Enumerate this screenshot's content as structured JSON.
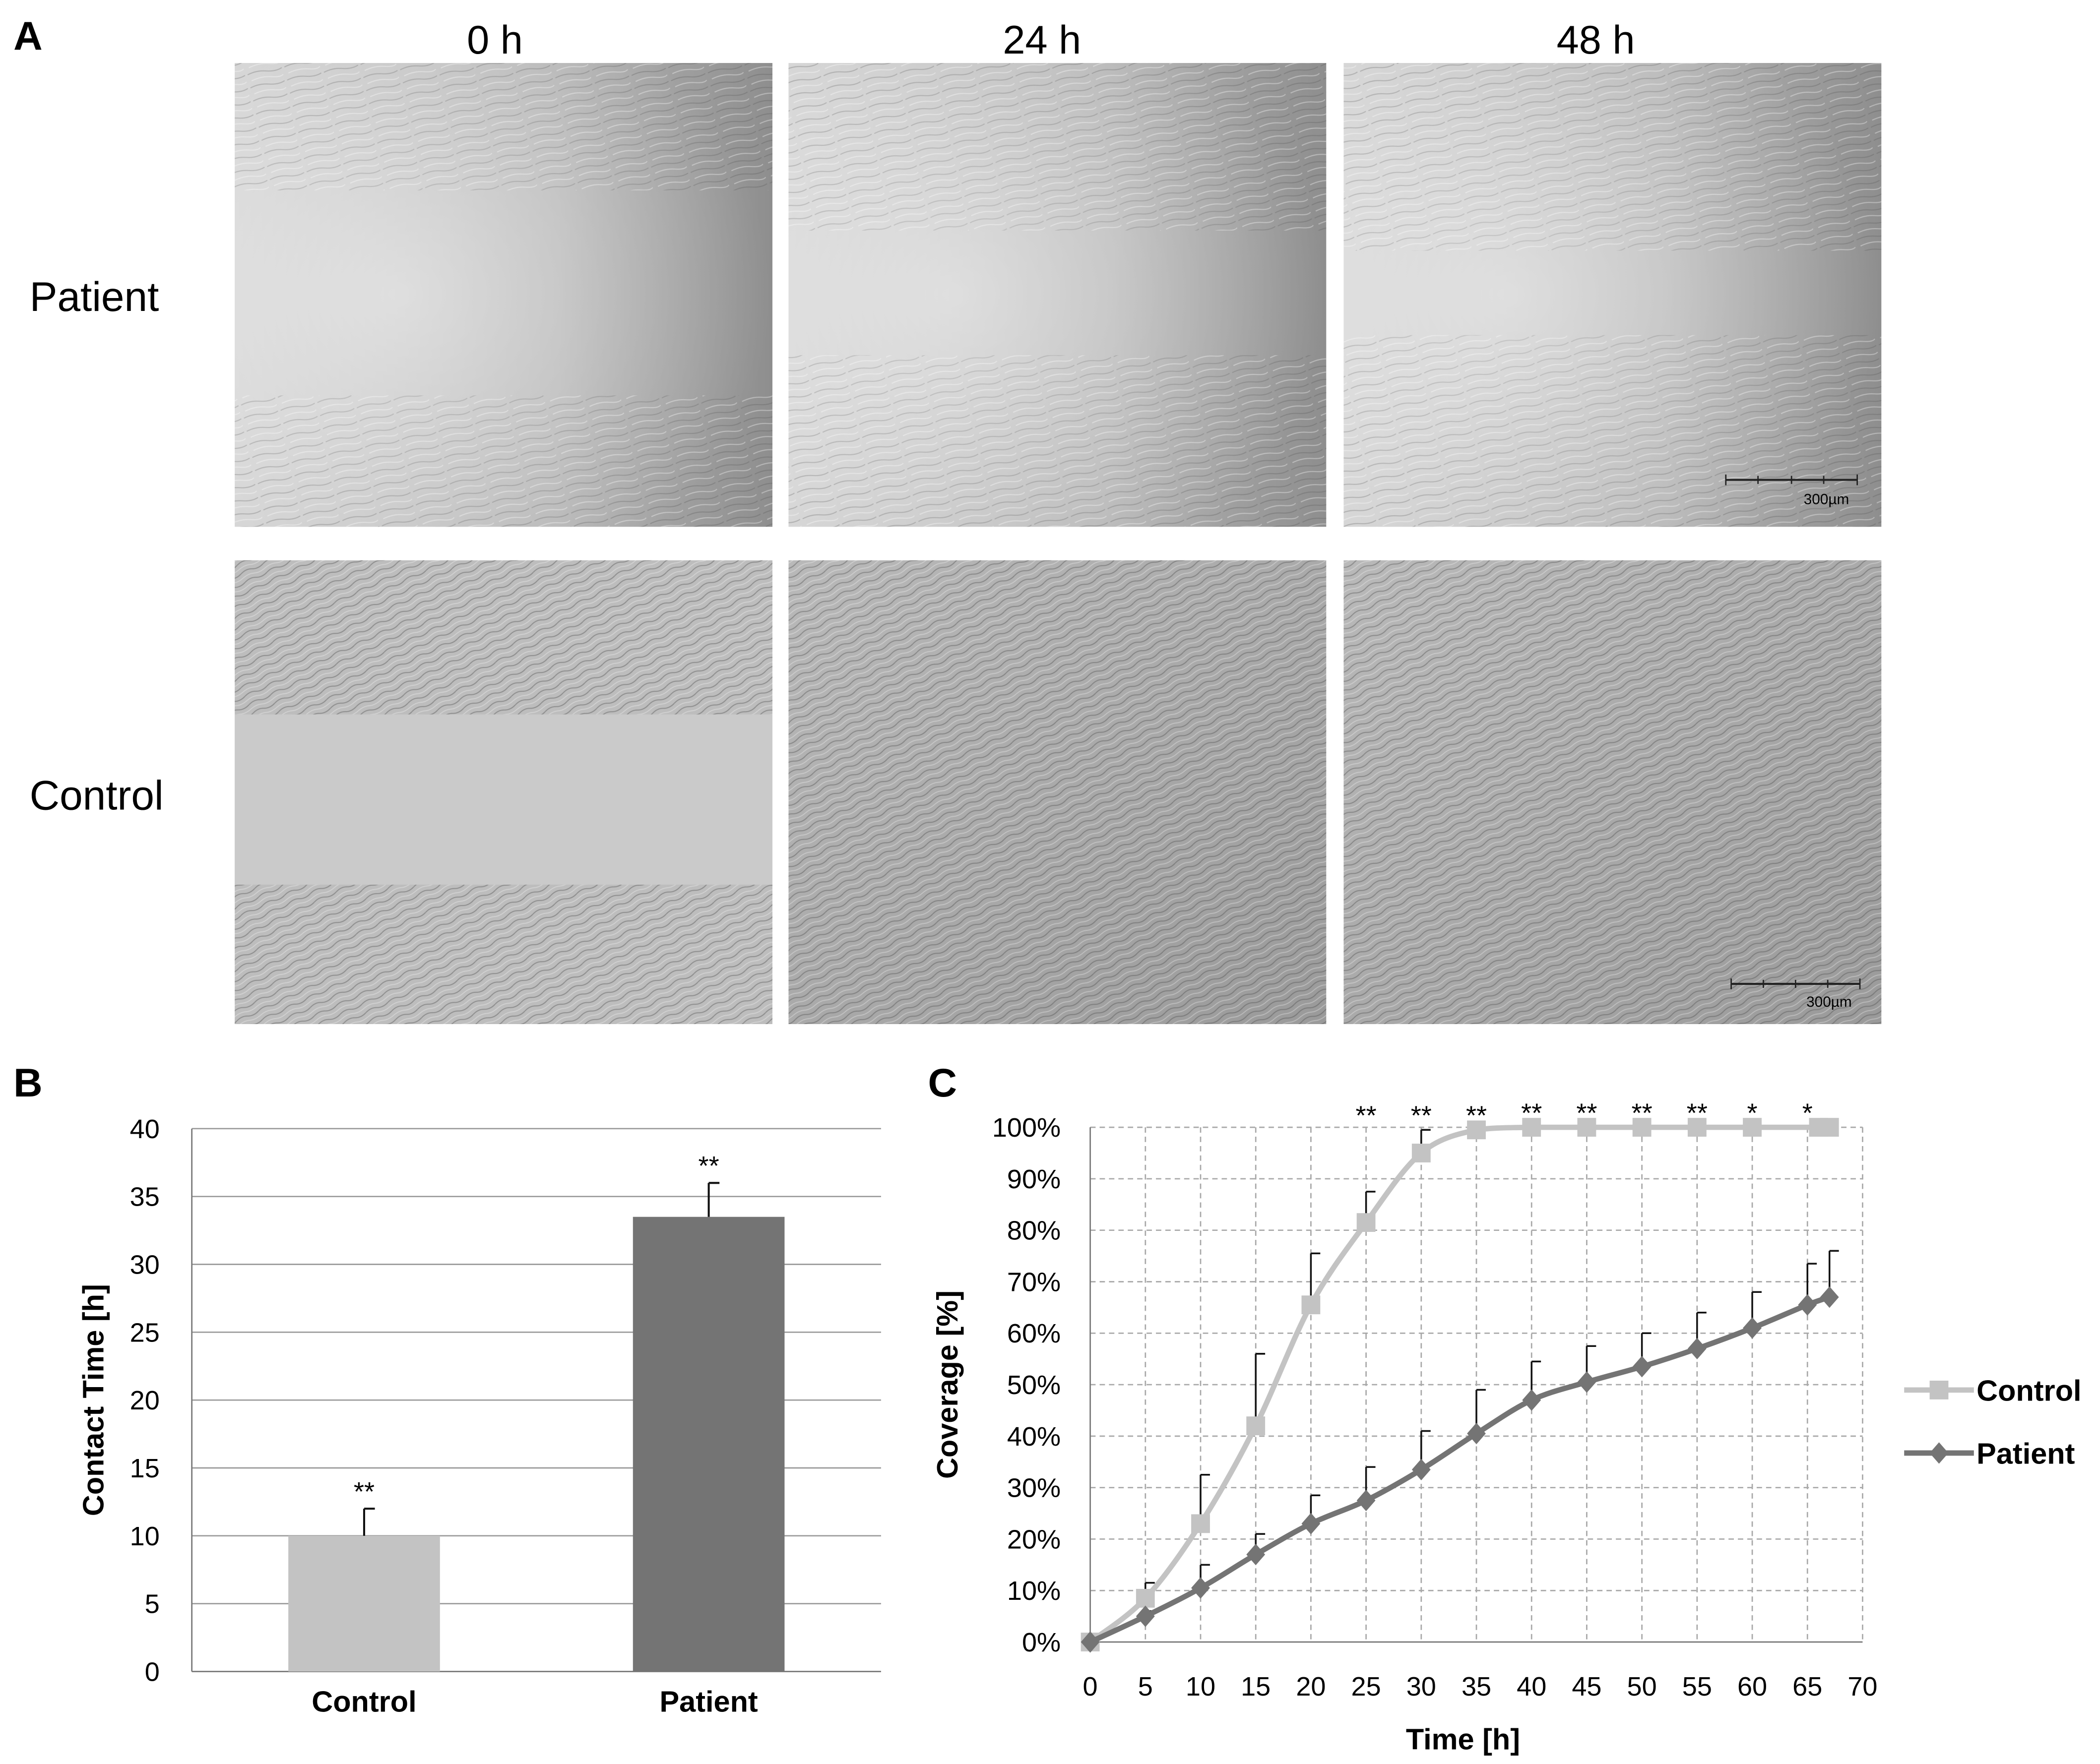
{
  "panels": {
    "a": {
      "letter": "A"
    },
    "b": {
      "letter": "B"
    },
    "c": {
      "letter": "C"
    }
  },
  "micrographs": {
    "columns": [
      "0 h",
      "24 h",
      "48 h"
    ],
    "rows": [
      "Patient",
      "Control"
    ],
    "scale_bar_label": "300µm"
  },
  "chart_data": [
    {
      "type": "bar",
      "categories": [
        "Control",
        "Patient"
      ],
      "values": [
        10.0,
        33.5
      ],
      "errors": [
        2.0,
        2.5
      ],
      "annotations": [
        "**",
        "**"
      ],
      "bar_colors": [
        "#c3c3c3",
        "#747474"
      ],
      "ylabel": "Contact Time [h]",
      "ylim": [
        0,
        40
      ],
      "yticks": [
        0,
        5,
        10,
        15,
        20,
        25,
        30,
        35,
        40
      ],
      "grid": "horizontal"
    },
    {
      "type": "line",
      "xlabel": "Time [h]",
      "ylabel": "Coverage [%]",
      "xlim": [
        0,
        70
      ],
      "ylim": [
        0,
        100
      ],
      "xticks": [
        0,
        5,
        10,
        15,
        20,
        25,
        30,
        35,
        40,
        45,
        50,
        55,
        60,
        65,
        70
      ],
      "yticks": [
        "0%",
        "10%",
        "20%",
        "30%",
        "40%",
        "50%",
        "60%",
        "70%",
        "80%",
        "90%",
        "100%"
      ],
      "grid": "dashed",
      "legend_position": "right",
      "series": [
        {
          "name": "Control",
          "color": "#c3c3c3",
          "marker": "square",
          "x": [
            0,
            5,
            10,
            15,
            20,
            25,
            30,
            35,
            40,
            45,
            50,
            55,
            60,
            66,
            67
          ],
          "values": [
            0,
            8.5,
            23,
            42,
            65.5,
            81.5,
            95,
            99.5,
            100,
            100,
            100,
            100,
            100,
            100,
            100
          ],
          "errors": [
            0,
            3,
            9.5,
            14,
            10,
            6,
            4.5,
            0,
            0,
            0,
            0,
            0,
            0,
            0,
            0
          ]
        },
        {
          "name": "Patient",
          "color": "#747474",
          "marker": "diamond",
          "x": [
            0,
            5,
            10,
            15,
            20,
            25,
            30,
            35,
            40,
            45,
            50,
            55,
            60,
            65,
            67
          ],
          "values": [
            0,
            5,
            10.5,
            17,
            23,
            27.5,
            33.5,
            40.5,
            47,
            50.5,
            53.5,
            57,
            61,
            65.5,
            67
          ],
          "errors": [
            0,
            1,
            4.5,
            4,
            5.5,
            6.5,
            7.5,
            8.5,
            7.5,
            7,
            6.5,
            7,
            7,
            8,
            9
          ]
        }
      ],
      "annotations": [
        {
          "x": 25,
          "label": "**"
        },
        {
          "x": 30,
          "label": "**"
        },
        {
          "x": 35,
          "label": "**"
        },
        {
          "x": 40,
          "label": "**"
        },
        {
          "x": 45,
          "label": "**"
        },
        {
          "x": 50,
          "label": "**"
        },
        {
          "x": 55,
          "label": "**"
        },
        {
          "x": 60,
          "label": "*"
        },
        {
          "x": 65,
          "label": "*"
        }
      ]
    }
  ]
}
